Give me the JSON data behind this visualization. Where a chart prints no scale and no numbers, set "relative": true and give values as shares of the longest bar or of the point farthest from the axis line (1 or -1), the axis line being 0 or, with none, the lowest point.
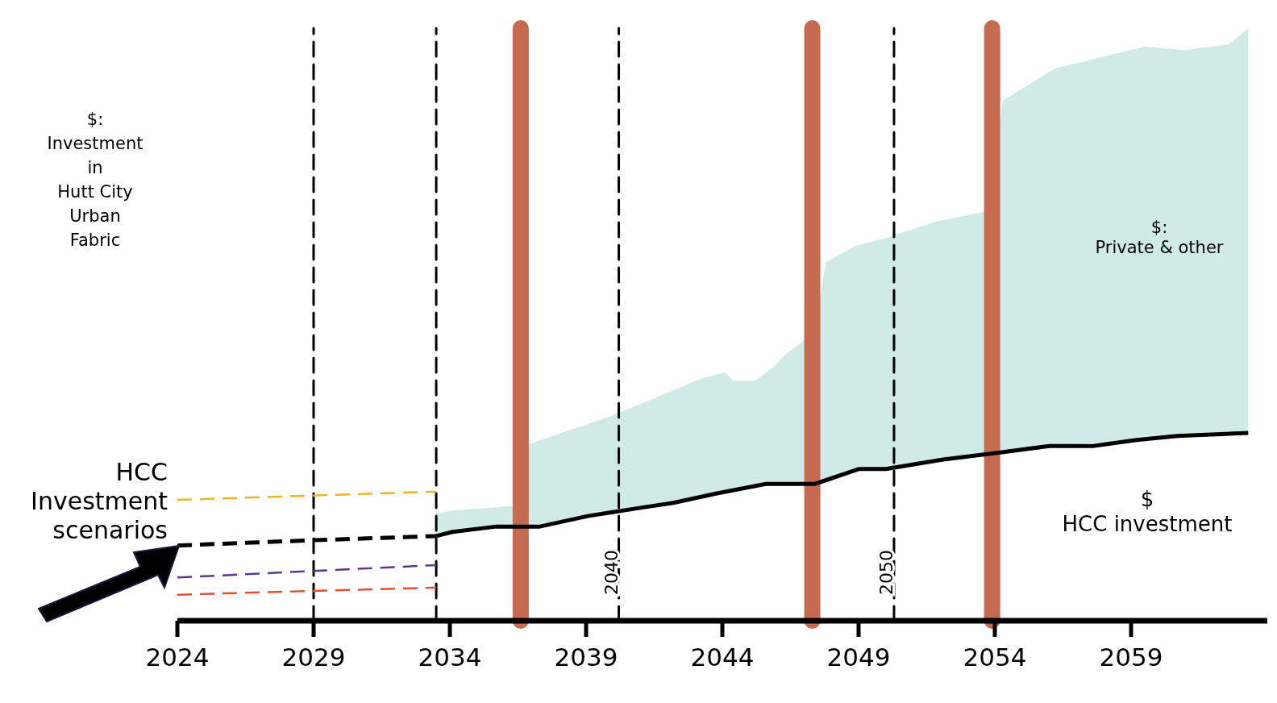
{
  "chart_data": {
    "type": "line",
    "relative": true,
    "ylabel": "$:\nInvestment\nin\nHutt City\nUrban\nFabric",
    "xlim": [
      2024,
      2064
    ],
    "xticks": [
      2024,
      2029,
      2034,
      2039,
      2044,
      2049,
      2054,
      2059
    ],
    "grid": false,
    "legend": false,
    "marker": "none",
    "series": [
      {
        "color": "#e8b628",
        "line_style": "dashed",
        "x": [
          2024,
          2033.5
        ],
        "values": [
          0.204,
          0.218
        ]
      },
      {
        "color": "#5b3a8c",
        "line_style": "dashed",
        "x": [
          2024,
          2033.5
        ],
        "values": [
          0.073,
          0.094
        ]
      },
      {
        "color": "#e0522e",
        "line_style": "dashed",
        "x": [
          2024,
          2033.5
        ],
        "values": [
          0.044,
          0.056
        ]
      },
      {
        "color": "#000000",
        "line_style": "dashed",
        "x": [
          2024,
          2029,
          2033.5
        ],
        "values": [
          0.127,
          0.136,
          0.143
        ]
      },
      {
        "color": "#000000",
        "line_style": "solid",
        "x": [
          2033.5,
          2034.1,
          2035.7,
          2037.3,
          2039.1,
          2040.9,
          2042.2,
          2043.8,
          2045.6,
          2047.4,
          2049,
          2050,
          2052.1,
          2054.2,
          2056,
          2057.6,
          2059.2,
          2060.7,
          2063.3
        ],
        "values": [
          0.143,
          0.15,
          0.159,
          0.159,
          0.177,
          0.19,
          0.199,
          0.215,
          0.231,
          0.231,
          0.256,
          0.256,
          0.272,
          0.284,
          0.295,
          0.295,
          0.305,
          0.312,
          0.317
        ]
      },
      {
        "type": "area",
        "color": "#d0eae8",
        "x": [
          2033.5,
          2034.1,
          2036.1,
          2036.5,
          2036.7,
          2040,
          2043.2,
          2044.1,
          2044.4,
          2045.2,
          2045.9,
          2046.3,
          2047.1,
          2047.4,
          2047.8,
          2048.9,
          2050,
          2051.8,
          2053.7,
          2054.3,
          2056.2,
          2059.5,
          2061,
          2062.6,
          2063.3
        ],
        "values": [
          0.181,
          0.186,
          0.193,
          0.194,
          0.295,
          0.347,
          0.408,
          0.419,
          0.405,
          0.405,
          0.429,
          0.449,
          0.476,
          0.49,
          0.605,
          0.633,
          0.646,
          0.673,
          0.691,
          0.878,
          0.932,
          0.969,
          0.963,
          0.973,
          1.0
        ]
      }
    ],
    "ref_lines": [
      {
        "axis": "x",
        "value": 2029,
        "color": "#000000",
        "line_style": "dashed"
      },
      {
        "axis": "x",
        "value": 2033.5,
        "color": "#000000",
        "line_style": "dashed"
      },
      {
        "axis": "x",
        "value": 2040.2,
        "label": "2040",
        "color": "#000000",
        "line_style": "dashed"
      },
      {
        "axis": "x",
        "value": 2050.3,
        "label": "2050",
        "color": "#000000",
        "line_style": "dashed"
      },
      {
        "axis": "x",
        "value": 2036.6,
        "color": "#c76b50",
        "line_style": "solid"
      },
      {
        "axis": "x",
        "value": 2047.3,
        "color": "#c76b50",
        "line_style": "solid"
      },
      {
        "axis": "x",
        "value": 2053.9,
        "color": "#c76b50",
        "line_style": "solid"
      }
    ],
    "annotations": [
      "HCC\nInvestment\nscenarios",
      "$:\nPrivate & other",
      "$\nHCC investment"
    ]
  }
}
